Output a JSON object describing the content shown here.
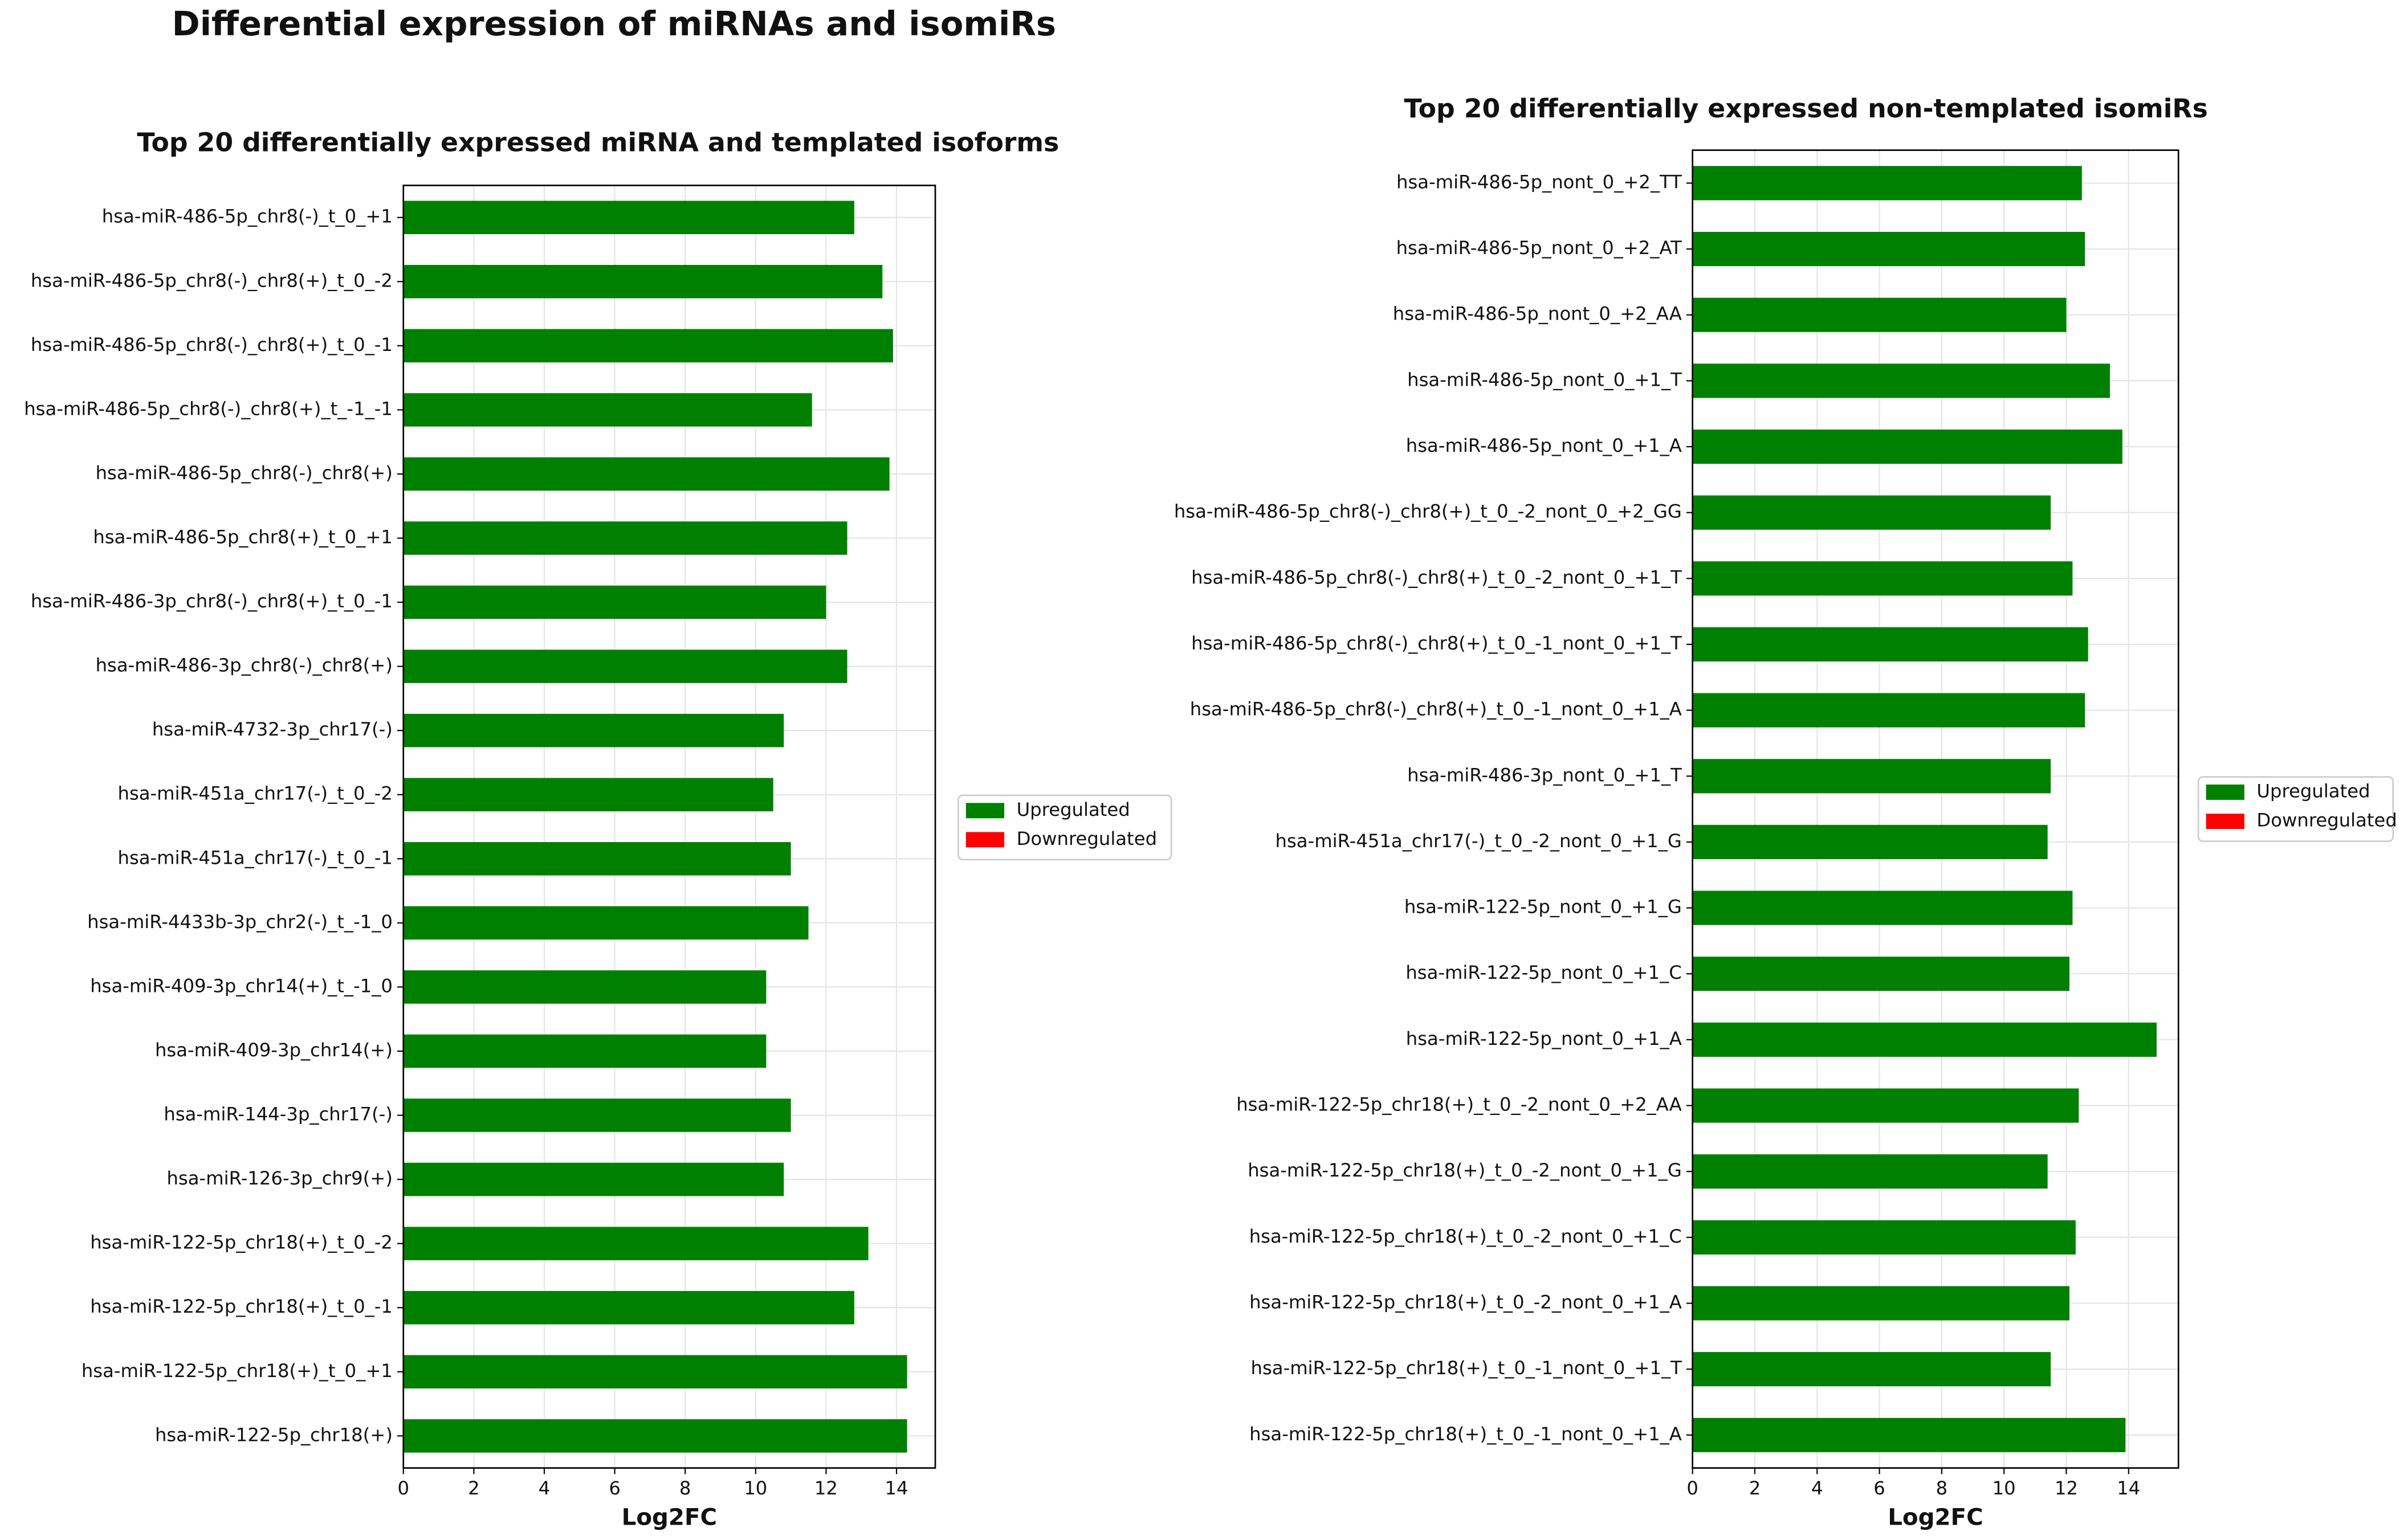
{
  "title": "Differential expression of miRNAs and isomiRs",
  "chart_data": [
    {
      "type": "barh",
      "title": "Top 20 differentially expressed miRNA and templated isoforms",
      "xlabel": "Log2FC",
      "categories": [
        "hsa-miR-486-5p_chr8(-)_t_0_+1",
        "hsa-miR-486-5p_chr8(-)_chr8(+)_t_0_-2",
        "hsa-miR-486-5p_chr8(-)_chr8(+)_t_0_-1",
        "hsa-miR-486-5p_chr8(-)_chr8(+)_t_-1_-1",
        "hsa-miR-486-5p_chr8(-)_chr8(+)",
        "hsa-miR-486-5p_chr8(+)_t_0_+1",
        "hsa-miR-486-3p_chr8(-)_chr8(+)_t_0_-1",
        "hsa-miR-486-3p_chr8(-)_chr8(+)",
        "hsa-miR-4732-3p_chr17(-)",
        "hsa-miR-451a_chr17(-)_t_0_-2",
        "hsa-miR-451a_chr17(-)_t_0_-1",
        "hsa-miR-4433b-3p_chr2(-)_t_-1_0",
        "hsa-miR-409-3p_chr14(+)_t_-1_0",
        "hsa-miR-409-3p_chr14(+)",
        "hsa-miR-144-3p_chr17(-)",
        "hsa-miR-126-3p_chr9(+)",
        "hsa-miR-122-5p_chr18(+)_t_0_-2",
        "hsa-miR-122-5p_chr18(+)_t_0_-1",
        "hsa-miR-122-5p_chr18(+)_t_0_+1",
        "hsa-miR-122-5p_chr18(+)"
      ],
      "series": [
        {
          "name": "Upregulated",
          "color": "#008000",
          "values": [
            12.8,
            13.6,
            13.9,
            11.6,
            13.8,
            12.6,
            12.0,
            12.6,
            10.8,
            10.5,
            11.0,
            11.5,
            10.3,
            10.3,
            11.0,
            10.8,
            13.2,
            12.8,
            14.3,
            14.3
          ]
        }
      ],
      "legend": [
        {
          "name": "Upregulated",
          "color": "#008000"
        },
        {
          "name": "Downregulated",
          "color": "#ff0000"
        }
      ],
      "xlim": [
        0,
        15.1
      ],
      "xticks": [
        0,
        2,
        4,
        6,
        8,
        10,
        12,
        14
      ],
      "grid": true
    },
    {
      "type": "barh",
      "title": "Top 20 differentially expressed non-templated isomiRs",
      "xlabel": "Log2FC",
      "categories": [
        "hsa-miR-486-5p_nont_0_+2_TT",
        "hsa-miR-486-5p_nont_0_+2_AT",
        "hsa-miR-486-5p_nont_0_+2_AA",
        "hsa-miR-486-5p_nont_0_+1_T",
        "hsa-miR-486-5p_nont_0_+1_A",
        "hsa-miR-486-5p_chr8(-)_chr8(+)_t_0_-2_nont_0_+2_GG",
        "hsa-miR-486-5p_chr8(-)_chr8(+)_t_0_-2_nont_0_+1_T",
        "hsa-miR-486-5p_chr8(-)_chr8(+)_t_0_-1_nont_0_+1_T",
        "hsa-miR-486-5p_chr8(-)_chr8(+)_t_0_-1_nont_0_+1_A",
        "hsa-miR-486-3p_nont_0_+1_T",
        "hsa-miR-451a_chr17(-)_t_0_-2_nont_0_+1_G",
        "hsa-miR-122-5p_nont_0_+1_G",
        "hsa-miR-122-5p_nont_0_+1_C",
        "hsa-miR-122-5p_nont_0_+1_A",
        "hsa-miR-122-5p_chr18(+)_t_0_-2_nont_0_+2_AA",
        "hsa-miR-122-5p_chr18(+)_t_0_-2_nont_0_+1_G",
        "hsa-miR-122-5p_chr18(+)_t_0_-2_nont_0_+1_C",
        "hsa-miR-122-5p_chr18(+)_t_0_-2_nont_0_+1_A",
        "hsa-miR-122-5p_chr18(+)_t_0_-1_nont_0_+1_T",
        "hsa-miR-122-5p_chr18(+)_t_0_-1_nont_0_+1_A"
      ],
      "series": [
        {
          "name": "Upregulated",
          "color": "#008000",
          "values": [
            12.5,
            12.6,
            12.0,
            13.4,
            13.8,
            11.5,
            12.2,
            12.7,
            12.6,
            11.5,
            11.4,
            12.2,
            12.1,
            14.9,
            12.4,
            11.4,
            12.3,
            12.1,
            11.5,
            13.9
          ]
        }
      ],
      "legend": [
        {
          "name": "Upregulated",
          "color": "#008000"
        },
        {
          "name": "Downregulated",
          "color": "#ff0000"
        }
      ],
      "xlim": [
        0,
        15.6
      ],
      "xticks": [
        0,
        2,
        4,
        6,
        8,
        10,
        12,
        14
      ],
      "grid": true
    }
  ]
}
